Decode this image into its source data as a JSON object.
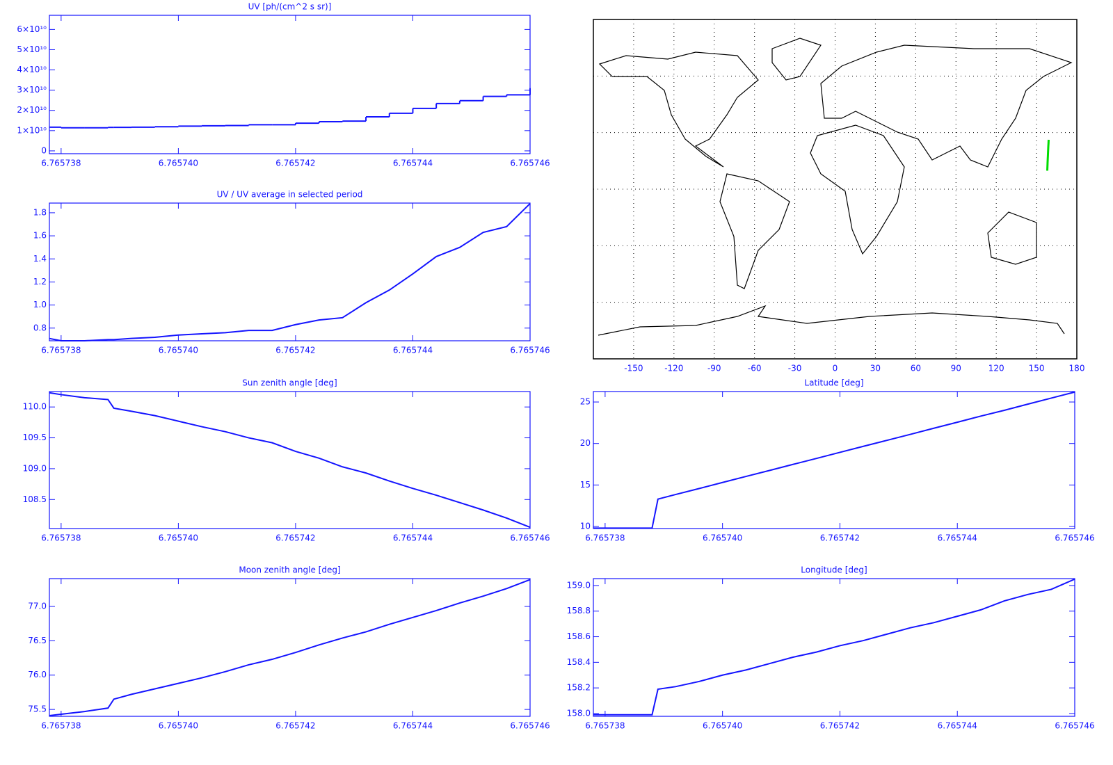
{
  "chart_data": [
    {
      "type": "step",
      "title": "UV [ph/(cm^2 s sr)]",
      "color": "#1414ff",
      "x": [
        6.7657378,
        6.765738,
        6.7657384,
        6.7657388,
        6.7657389,
        6.7657392,
        6.7657396,
        6.76574,
        6.7657404,
        6.7657408,
        6.7657412,
        6.7657416,
        6.765742,
        6.7657424,
        6.7657428,
        6.7657432,
        6.7657436,
        6.765744,
        6.7657444,
        6.7657448,
        6.7657452,
        6.7657456,
        6.765746
      ],
      "values": [
        11700000000,
        11400000000,
        11400000000,
        11600000000,
        11600000000,
        11700000000,
        11900000000,
        12200000000,
        12400000000,
        12500000000,
        12900000000,
        12900000000,
        13700000000,
        14400000000,
        14700000000,
        16800000000,
        18600000000,
        21000000000,
        23400000000,
        24800000000,
        26900000000,
        27700000000,
        31000000000
      ],
      "xlim": [
        6.7657378,
        6.765746
      ],
      "xticks": [
        6.765738,
        {
          "value": 6.76574,
          "label": "6.765740"
        },
        6.765742,
        6.765744,
        6.765746
      ],
      "ylim": [
        -1400000000,
        67000000000
      ],
      "yticks": [
        0,
        {
          "value": 10000000000,
          "label": "1×10¹⁰"
        },
        {
          "value": 20000000000,
          "label": "2×10¹⁰"
        },
        {
          "value": 30000000000,
          "label": "3×10¹⁰"
        },
        {
          "value": 40000000000,
          "label": "4×10¹⁰"
        },
        {
          "value": 50000000000,
          "label": "5×10¹⁰"
        },
        {
          "value": 60000000000,
          "label": "6×10¹⁰"
        }
      ]
    },
    {
      "type": "line",
      "title": "UV / UV average in selected period",
      "color": "#1414ff",
      "x": [
        6.7657378,
        6.765738,
        6.7657384,
        6.7657388,
        6.7657389,
        6.7657392,
        6.7657396,
        6.76574,
        6.7657404,
        6.7657408,
        6.7657412,
        6.7657416,
        6.765742,
        6.7657424,
        6.7657428,
        6.7657432,
        6.7657436,
        6.765744,
        6.7657444,
        6.7657448,
        6.7657452,
        6.7657456,
        6.765746
      ],
      "values": [
        0.71,
        0.69,
        0.69,
        0.7,
        0.7,
        0.71,
        0.72,
        0.74,
        0.75,
        0.76,
        0.78,
        0.78,
        0.83,
        0.87,
        0.89,
        1.02,
        1.13,
        1.27,
        1.42,
        1.5,
        1.63,
        1.68,
        1.88
      ],
      "xlim": [
        6.7657378,
        6.765746
      ],
      "xticks": [
        6.765738,
        {
          "value": 6.76574,
          "label": "6.765740"
        },
        6.765742,
        6.765744,
        6.765746
      ],
      "ylim": [
        0.69,
        1.884
      ],
      "yticks": [
        0.8,
        {
          "value": 1,
          "label": "1.0"
        },
        1.2,
        1.4,
        1.6,
        1.8
      ]
    },
    {
      "type": "line",
      "title": "Sun zenith angle [deg]",
      "color": "#1414ff",
      "x": [
        6.7657378,
        6.765738,
        6.7657384,
        6.7657388,
        6.7657389,
        6.7657392,
        6.7657396,
        6.76574,
        6.7657404,
        6.7657408,
        6.7657412,
        6.7657416,
        6.765742,
        6.7657424,
        6.7657428,
        6.7657432,
        6.7657436,
        6.765744,
        6.7657444,
        6.7657448,
        6.7657452,
        6.7657456,
        6.765746
      ],
      "values": [
        110.23,
        110.2,
        110.15,
        110.12,
        109.98,
        109.93,
        109.86,
        109.77,
        109.68,
        109.6,
        109.5,
        109.42,
        109.28,
        109.17,
        109.03,
        108.93,
        108.8,
        108.68,
        108.57,
        108.45,
        108.33,
        108.2,
        108.05
      ],
      "xlim": [
        6.7657378,
        6.765746
      ],
      "xticks": [
        6.765738,
        {
          "value": 6.76574,
          "label": "6.765740"
        },
        6.765742,
        6.765744,
        6.765746
      ],
      "ylim": [
        108.03,
        110.25
      ],
      "yticks": [
        108.5,
        {
          "value": 109,
          "label": "109.0"
        },
        109.5,
        {
          "value": 110,
          "label": "110.0"
        }
      ]
    },
    {
      "type": "line",
      "title": "Moon zenith angle [deg]",
      "color": "#1414ff",
      "x": [
        6.7657378,
        6.765738,
        6.7657384,
        6.7657388,
        6.7657389,
        6.7657392,
        6.7657396,
        6.76574,
        6.7657404,
        6.7657408,
        6.7657412,
        6.7657416,
        6.765742,
        6.7657424,
        6.7657428,
        6.7657432,
        6.7657436,
        6.765744,
        6.7657444,
        6.7657448,
        6.7657452,
        6.7657456,
        6.765746
      ],
      "values": [
        75.41,
        75.43,
        75.47,
        75.52,
        75.65,
        75.72,
        75.8,
        75.88,
        75.96,
        76.05,
        76.15,
        76.23,
        76.33,
        76.44,
        76.54,
        76.63,
        76.74,
        76.84,
        76.94,
        77.05,
        77.15,
        77.26,
        77.39
      ],
      "xlim": [
        6.7657378,
        6.765746
      ],
      "xticks": [
        6.765738,
        {
          "value": 6.76574,
          "label": "6.765740"
        },
        6.765742,
        6.765744,
        6.765746
      ],
      "ylim": [
        75.4,
        77.405
      ],
      "yticks": [
        75.5,
        {
          "value": 76,
          "label": "76.0"
        },
        76.5,
        {
          "value": 77,
          "label": "77.0"
        }
      ]
    },
    {
      "type": "line",
      "title": "Latitude [deg]",
      "color": "#1414ff",
      "x": [
        6.7657378,
        6.765738,
        6.7657384,
        6.7657388,
        6.7657389,
        6.7657392,
        6.7657396,
        6.76574,
        6.7657404,
        6.7657408,
        6.7657412,
        6.7657416,
        6.765742,
        6.7657424,
        6.7657428,
        6.7657432,
        6.7657436,
        6.765744,
        6.7657444,
        6.7657448,
        6.7657452,
        6.7657456,
        6.765746
      ],
      "values": [
        9.8,
        9.8,
        9.8,
        9.8,
        13.3,
        13.85,
        14.57,
        15.3,
        16.03,
        16.75,
        17.48,
        18.2,
        18.93,
        19.66,
        20.38,
        21.1,
        21.84,
        22.56,
        23.3,
        24.0,
        24.74,
        25.47,
        26.2
      ],
      "xlim": [
        6.7657378,
        6.765746
      ],
      "xticks": [
        6.765738,
        {
          "value": 6.76574,
          "label": "6.765740"
        },
        6.765742,
        6.765744,
        6.765746
      ],
      "ylim": [
        9.75,
        26.26
      ],
      "yticks": [
        10,
        15,
        20,
        25
      ]
    },
    {
      "type": "line",
      "title": "Longitude [deg]",
      "color": "#1414ff",
      "x": [
        6.7657378,
        6.765738,
        6.7657384,
        6.7657388,
        6.7657389,
        6.7657392,
        6.7657396,
        6.76574,
        6.7657404,
        6.7657408,
        6.7657412,
        6.7657416,
        6.765742,
        6.7657424,
        6.7657428,
        6.7657432,
        6.7657436,
        6.765744,
        6.7657444,
        6.7657448,
        6.7657452,
        6.7657456,
        6.765746
      ],
      "values": [
        157.99,
        157.99,
        157.99,
        157.99,
        158.19,
        158.21,
        158.25,
        158.3,
        158.34,
        158.39,
        158.44,
        158.48,
        158.53,
        158.57,
        158.62,
        158.67,
        158.71,
        158.76,
        158.81,
        158.88,
        158.93,
        158.97,
        159.05
      ],
      "xlim": [
        6.7657378,
        6.765746
      ],
      "xticks": [
        6.765738,
        {
          "value": 6.76574,
          "label": "6.765740"
        },
        6.765742,
        6.765744,
        6.765746
      ],
      "ylim": [
        157.978,
        159.054
      ],
      "yticks": [
        {
          "value": 158,
          "label": "158.0"
        },
        158.2,
        158.4,
        158.6,
        158.8,
        {
          "value": 159,
          "label": "159.0"
        }
      ]
    },
    {
      "type": "map",
      "color": "#00dd00",
      "grid": true,
      "xlim": [
        -180,
        180
      ],
      "xticks": [
        -150,
        -120,
        -90,
        -60,
        -30,
        0,
        30,
        60,
        90,
        120,
        150,
        180
      ],
      "ylim": [
        -90,
        90
      ],
      "yticks": [
        -60,
        -30,
        0,
        30,
        60
      ]
    }
  ]
}
